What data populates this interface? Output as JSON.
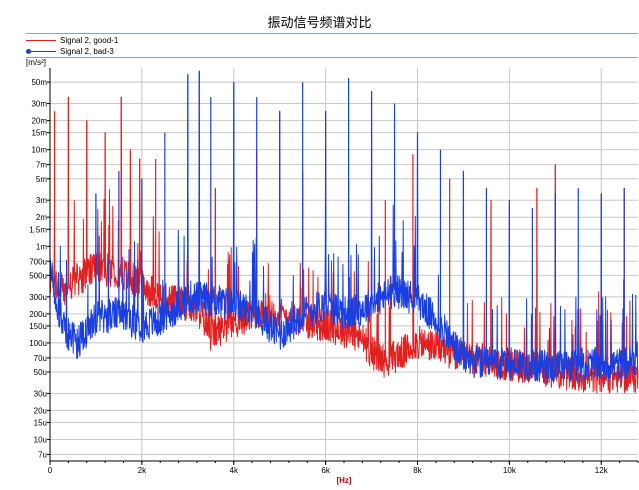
{
  "chart_data": {
    "type": "line",
    "title": "振动信号频谱对比",
    "xlabel": "[Hz]",
    "ylabel": "[m/s²]",
    "xlim": [
      0,
      12800
    ],
    "ylim": [
      0.006,
      70
    ],
    "yscale": "log",
    "x_ticks": [
      {
        "value": 0,
        "label": "0"
      },
      {
        "value": 2000,
        "label": "2k"
      },
      {
        "value": 4000,
        "label": "4k"
      },
      {
        "value": 6000,
        "label": "6k"
      },
      {
        "value": 8000,
        "label": "8k"
      },
      {
        "value": 10000,
        "label": "10k"
      },
      {
        "value": 12000,
        "label": "12k"
      }
    ],
    "y_ticks": [
      {
        "value": 50,
        "label": "50m"
      },
      {
        "value": 30,
        "label": "30m"
      },
      {
        "value": 20,
        "label": "20m"
      },
      {
        "value": 15,
        "label": "15m"
      },
      {
        "value": 10,
        "label": "10m"
      },
      {
        "value": 7,
        "label": "7m"
      },
      {
        "value": 5,
        "label": "5m"
      },
      {
        "value": 3,
        "label": "3m"
      },
      {
        "value": 2,
        "label": "2m"
      },
      {
        "value": 1.5,
        "label": "1.5m"
      },
      {
        "value": 1,
        "label": "1m"
      },
      {
        "value": 0.7,
        "label": "700u"
      },
      {
        "value": 0.5,
        "label": "500u"
      },
      {
        "value": 0.3,
        "label": "300u"
      },
      {
        "value": 0.2,
        "label": "200u"
      },
      {
        "value": 0.15,
        "label": "150u"
      },
      {
        "value": 0.1,
        "label": "100u"
      },
      {
        "value": 0.07,
        "label": "70u"
      },
      {
        "value": 0.05,
        "label": "50u"
      },
      {
        "value": 0.03,
        "label": "30u"
      },
      {
        "value": 0.02,
        "label": "20u"
      },
      {
        "value": 0.015,
        "label": "15u"
      },
      {
        "value": 0.01,
        "label": "10u"
      },
      {
        "value": 0.007,
        "label": "7u"
      }
    ],
    "series": [
      {
        "name": "Signal 2, good-1",
        "color": "#e32020",
        "baseline": [
          [
            0,
            0.45
          ],
          [
            300,
            0.35
          ],
          [
            600,
            0.45
          ],
          [
            1000,
            0.6
          ],
          [
            1500,
            0.55
          ],
          [
            2000,
            0.4
          ],
          [
            2500,
            0.28
          ],
          [
            3000,
            0.25
          ],
          [
            3300,
            0.2
          ],
          [
            3500,
            0.12
          ],
          [
            3800,
            0.15
          ],
          [
            4200,
            0.18
          ],
          [
            4700,
            0.22
          ],
          [
            5000,
            0.2
          ],
          [
            5500,
            0.17
          ],
          [
            6000,
            0.15
          ],
          [
            6500,
            0.13
          ],
          [
            6800,
            0.11
          ],
          [
            7000,
            0.08
          ],
          [
            7300,
            0.065
          ],
          [
            7700,
            0.08
          ],
          [
            8000,
            0.1
          ],
          [
            8500,
            0.09
          ],
          [
            9000,
            0.07
          ],
          [
            9500,
            0.065
          ],
          [
            10000,
            0.06
          ],
          [
            10500,
            0.055
          ],
          [
            11000,
            0.05
          ],
          [
            11500,
            0.045
          ],
          [
            12000,
            0.045
          ],
          [
            12800,
            0.045
          ]
        ],
        "peaks": [
          [
            100,
            25
          ],
          [
            400,
            35
          ],
          [
            800,
            20
          ],
          [
            1200,
            15
          ],
          [
            1550,
            35
          ],
          [
            1750,
            10
          ],
          [
            1950,
            8
          ],
          [
            2300,
            8
          ],
          [
            3000,
            5
          ],
          [
            3600,
            4
          ],
          [
            4500,
            10
          ],
          [
            5500,
            6
          ],
          [
            6500,
            5
          ],
          [
            7300,
            3
          ],
          [
            7900,
            9
          ],
          [
            8700,
            5
          ],
          [
            9600,
            3
          ],
          [
            10600,
            4
          ],
          [
            11000,
            7
          ],
          [
            12500,
            4
          ]
        ]
      },
      {
        "name": "Signal 2, bad-3",
        "color": "#1a3fe0",
        "baseline": [
          [
            0,
            0.6
          ],
          [
            200,
            0.2
          ],
          [
            400,
            0.12
          ],
          [
            600,
            0.1
          ],
          [
            1000,
            0.18
          ],
          [
            1500,
            0.2
          ],
          [
            2000,
            0.15
          ],
          [
            2500,
            0.18
          ],
          [
            3000,
            0.3
          ],
          [
            3500,
            0.28
          ],
          [
            4000,
            0.25
          ],
          [
            4500,
            0.2
          ],
          [
            5000,
            0.12
          ],
          [
            5500,
            0.2
          ],
          [
            6000,
            0.25
          ],
          [
            6500,
            0.2
          ],
          [
            7000,
            0.25
          ],
          [
            7500,
            0.35
          ],
          [
            8000,
            0.28
          ],
          [
            8500,
            0.15
          ],
          [
            9000,
            0.07
          ],
          [
            9500,
            0.06
          ],
          [
            10000,
            0.06
          ],
          [
            10500,
            0.06
          ],
          [
            11000,
            0.055
          ],
          [
            11500,
            0.06
          ],
          [
            12000,
            0.06
          ],
          [
            12500,
            0.06
          ],
          [
            12800,
            0.07
          ]
        ],
        "peaks": [
          [
            1000,
            3.5
          ],
          [
            1500,
            6
          ],
          [
            2000,
            5
          ],
          [
            2500,
            15
          ],
          [
            3000,
            60
          ],
          [
            3250,
            65
          ],
          [
            3500,
            35
          ],
          [
            4000,
            50
          ],
          [
            4500,
            35
          ],
          [
            5000,
            25
          ],
          [
            5500,
            50
          ],
          [
            6000,
            25
          ],
          [
            6500,
            55
          ],
          [
            7000,
            40
          ],
          [
            7500,
            30
          ],
          [
            8000,
            15
          ],
          [
            8500,
            10
          ],
          [
            9000,
            6
          ],
          [
            9500,
            4
          ],
          [
            10000,
            3
          ],
          [
            10500,
            2.5
          ],
          [
            11000,
            3.5
          ],
          [
            11500,
            4
          ],
          [
            12000,
            3.5
          ],
          [
            12500,
            4
          ]
        ]
      }
    ]
  }
}
